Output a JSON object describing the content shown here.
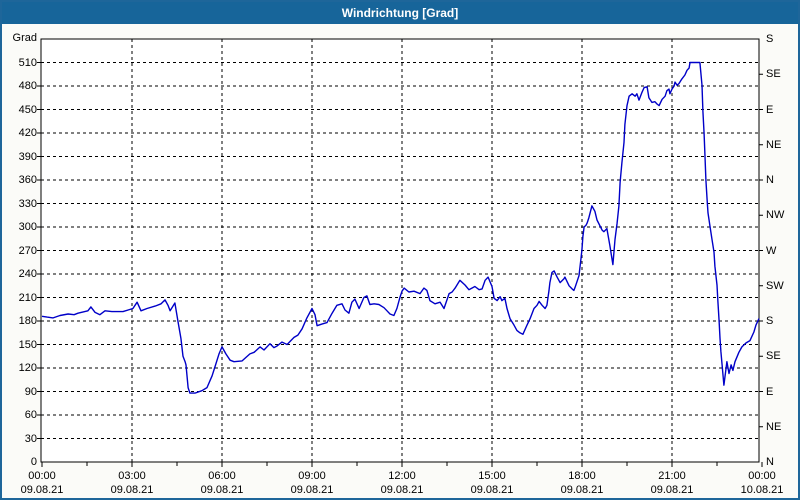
{
  "window": {
    "title": "Windrichtung [Grad]"
  },
  "colors": {
    "titlebar_bg": "#17659a",
    "titlebar_text": "#ffffff",
    "window_border": "#1e669a",
    "outer_bg": "#fbfbf8",
    "plot_bg": "#ffffff",
    "grid": "#000000",
    "line": "#0000c8"
  },
  "chart_data": {
    "type": "line",
    "title": "Windrichtung [Grad]",
    "grid": "dashed",
    "legend_position": "none",
    "y_axis_left": {
      "unit_label": "Grad",
      "range": [
        0,
        540
      ],
      "tick_step": 30,
      "ticks": [
        510,
        480,
        450,
        420,
        390,
        360,
        330,
        300,
        270,
        240,
        210,
        180,
        150,
        120,
        90,
        60,
        30,
        0
      ]
    },
    "y_axis_right": {
      "tick_step_degrees": 45,
      "ticks": [
        {
          "deg": 540,
          "label": "S"
        },
        {
          "deg": 495,
          "label": "SE"
        },
        {
          "deg": 450,
          "label": "E"
        },
        {
          "deg": 405,
          "label": "NE"
        },
        {
          "deg": 360,
          "label": "N"
        },
        {
          "deg": 315,
          "label": "NW"
        },
        {
          "deg": 270,
          "label": "W"
        },
        {
          "deg": 225,
          "label": "SW"
        },
        {
          "deg": 180,
          "label": "S"
        },
        {
          "deg": 135,
          "label": "SE"
        },
        {
          "deg": 90,
          "label": "E"
        },
        {
          "deg": 45,
          "label": "NE"
        },
        {
          "deg": 0,
          "label": "N"
        }
      ]
    },
    "x_axis": {
      "range_hours": [
        0,
        24
      ],
      "major_tick_hours": 3,
      "minor_tick_hours": 1.5,
      "ticks": [
        {
          "time": "00:00",
          "date": "09.08.21"
        },
        {
          "time": "03:00",
          "date": "09.08.21"
        },
        {
          "time": "06:00",
          "date": "09.08.21"
        },
        {
          "time": "09:00",
          "date": "09.08.21"
        },
        {
          "time": "12:00",
          "date": "09.08.21"
        },
        {
          "time": "15:00",
          "date": "09.08.21"
        },
        {
          "time": "18:00",
          "date": "09.08.21"
        },
        {
          "time": "21:00",
          "date": "09.08.21"
        },
        {
          "time": "00:00",
          "date": "10.08.21"
        }
      ]
    },
    "series": [
      {
        "name": "Windrichtung",
        "color": "#0000c8",
        "points": [
          [
            0,
            186
          ],
          [
            0.17,
            185
          ],
          [
            0.37,
            184
          ],
          [
            0.6,
            187
          ],
          [
            0.87,
            189
          ],
          [
            1.07,
            188
          ],
          [
            1.2,
            190
          ],
          [
            1.53,
            193
          ],
          [
            1.63,
            198
          ],
          [
            1.77,
            191
          ],
          [
            1.93,
            188
          ],
          [
            2.1,
            193
          ],
          [
            2.33,
            192
          ],
          [
            2.7,
            192
          ],
          [
            2.87,
            194
          ],
          [
            3.03,
            196
          ],
          [
            3.17,
            204
          ],
          [
            3.3,
            193
          ],
          [
            3.5,
            196
          ],
          [
            3.77,
            199
          ],
          [
            3.97,
            202
          ],
          [
            4.1,
            207
          ],
          [
            4.2,
            200
          ],
          [
            4.27,
            193
          ],
          [
            4.43,
            203
          ],
          [
            4.53,
            180
          ],
          [
            4.63,
            158
          ],
          [
            4.7,
            135
          ],
          [
            4.77,
            128
          ],
          [
            4.8,
            124
          ],
          [
            4.87,
            95
          ],
          [
            4.93,
            88
          ],
          [
            5.1,
            88
          ],
          [
            5.33,
            91
          ],
          [
            5.5,
            95
          ],
          [
            5.67,
            110
          ],
          [
            5.77,
            122
          ],
          [
            5.9,
            138
          ],
          [
            6.0,
            147
          ],
          [
            6.13,
            138
          ],
          [
            6.27,
            130
          ],
          [
            6.4,
            128
          ],
          [
            6.67,
            129
          ],
          [
            6.93,
            138
          ],
          [
            7.07,
            140
          ],
          [
            7.27,
            147
          ],
          [
            7.4,
            143
          ],
          [
            7.6,
            151
          ],
          [
            7.73,
            146
          ],
          [
            7.83,
            148
          ],
          [
            8.0,
            153
          ],
          [
            8.17,
            150
          ],
          [
            8.4,
            159
          ],
          [
            8.53,
            162
          ],
          [
            8.67,
            170
          ],
          [
            8.83,
            184
          ],
          [
            9.0,
            196
          ],
          [
            9.1,
            188
          ],
          [
            9.17,
            174
          ],
          [
            9.33,
            176
          ],
          [
            9.5,
            178
          ],
          [
            9.67,
            190
          ],
          [
            9.83,
            200
          ],
          [
            10.0,
            202
          ],
          [
            10.1,
            194
          ],
          [
            10.23,
            190
          ],
          [
            10.33,
            204
          ],
          [
            10.43,
            208
          ],
          [
            10.57,
            196
          ],
          [
            10.73,
            210
          ],
          [
            10.83,
            212
          ],
          [
            10.93,
            201
          ],
          [
            11.07,
            202
          ],
          [
            11.23,
            201
          ],
          [
            11.4,
            197
          ],
          [
            11.5,
            193
          ],
          [
            11.6,
            189
          ],
          [
            11.73,
            187
          ],
          [
            11.83,
            196
          ],
          [
            11.93,
            210
          ],
          [
            12.0,
            218
          ],
          [
            12.07,
            222
          ],
          [
            12.23,
            217
          ],
          [
            12.4,
            218
          ],
          [
            12.6,
            215
          ],
          [
            12.73,
            222
          ],
          [
            12.83,
            219
          ],
          [
            12.93,
            206
          ],
          [
            13.1,
            202
          ],
          [
            13.27,
            204
          ],
          [
            13.4,
            196
          ],
          [
            13.57,
            215
          ],
          [
            13.67,
            217
          ],
          [
            13.77,
            222
          ],
          [
            13.93,
            232
          ],
          [
            14.1,
            226
          ],
          [
            14.23,
            220
          ],
          [
            14.33,
            222
          ],
          [
            14.43,
            224
          ],
          [
            14.57,
            220
          ],
          [
            14.67,
            221
          ],
          [
            14.77,
            232
          ],
          [
            14.87,
            236
          ],
          [
            15.0,
            224
          ],
          [
            15.07,
            209
          ],
          [
            15.17,
            206
          ],
          [
            15.27,
            211
          ],
          [
            15.33,
            206
          ],
          [
            15.43,
            209
          ],
          [
            15.5,
            196
          ],
          [
            15.6,
            183
          ],
          [
            15.73,
            175
          ],
          [
            15.83,
            168
          ],
          [
            15.93,
            165
          ],
          [
            16.03,
            163
          ],
          [
            16.17,
            175
          ],
          [
            16.27,
            183
          ],
          [
            16.4,
            196
          ],
          [
            16.5,
            200
          ],
          [
            16.57,
            205
          ],
          [
            16.67,
            200
          ],
          [
            16.77,
            196
          ],
          [
            16.83,
            200
          ],
          [
            16.9,
            219
          ],
          [
            16.93,
            229
          ],
          [
            17.0,
            242
          ],
          [
            17.07,
            244
          ],
          [
            17.17,
            236
          ],
          [
            17.27,
            229
          ],
          [
            17.4,
            234
          ],
          [
            17.43,
            236
          ],
          [
            17.57,
            225
          ],
          [
            17.67,
            221
          ],
          [
            17.73,
            219
          ],
          [
            17.77,
            223
          ],
          [
            17.9,
            238
          ],
          [
            17.93,
            248
          ],
          [
            17.97,
            261
          ],
          [
            18.0,
            272
          ],
          [
            18.03,
            288
          ],
          [
            18.07,
            300
          ],
          [
            18.13,
            302
          ],
          [
            18.17,
            305
          ],
          [
            18.23,
            312
          ],
          [
            18.33,
            327
          ],
          [
            18.43,
            320
          ],
          [
            18.5,
            309
          ],
          [
            18.67,
            296
          ],
          [
            18.73,
            294
          ],
          [
            18.83,
            298
          ],
          [
            18.93,
            276
          ],
          [
            19.03,
            252
          ],
          [
            19.1,
            284
          ],
          [
            19.17,
            305
          ],
          [
            19.23,
            327
          ],
          [
            19.27,
            357
          ],
          [
            19.33,
            382
          ],
          [
            19.4,
            408
          ],
          [
            19.43,
            431
          ],
          [
            19.5,
            455
          ],
          [
            19.57,
            467
          ],
          [
            19.67,
            470
          ],
          [
            19.77,
            467
          ],
          [
            19.83,
            470
          ],
          [
            19.9,
            462
          ],
          [
            20.0,
            472
          ],
          [
            20.07,
            478
          ],
          [
            20.17,
            479
          ],
          [
            20.23,
            465
          ],
          [
            20.33,
            459
          ],
          [
            20.43,
            460
          ],
          [
            20.5,
            457
          ],
          [
            20.57,
            455
          ],
          [
            20.67,
            463
          ],
          [
            20.77,
            467
          ],
          [
            20.83,
            474
          ],
          [
            20.9,
            476
          ],
          [
            20.93,
            470
          ],
          [
            21.0,
            476
          ],
          [
            21.07,
            480
          ],
          [
            21.1,
            485
          ],
          [
            21.17,
            481
          ],
          [
            21.23,
            483
          ],
          [
            21.33,
            489
          ],
          [
            21.43,
            494
          ],
          [
            21.5,
            500
          ],
          [
            21.57,
            503
          ],
          [
            21.6,
            510
          ],
          [
            21.93,
            510
          ],
          [
            22.0,
            481
          ],
          [
            22.03,
            448
          ],
          [
            22.07,
            419
          ],
          [
            22.1,
            390
          ],
          [
            22.13,
            360
          ],
          [
            22.17,
            335
          ],
          [
            22.2,
            318
          ],
          [
            22.27,
            300
          ],
          [
            22.33,
            285
          ],
          [
            22.4,
            268
          ],
          [
            22.43,
            250
          ],
          [
            22.5,
            226
          ],
          [
            22.53,
            205
          ],
          [
            22.57,
            180
          ],
          [
            22.6,
            158
          ],
          [
            22.63,
            141
          ],
          [
            22.67,
            124
          ],
          [
            22.73,
            98
          ],
          [
            22.83,
            128
          ],
          [
            22.9,
            113
          ],
          [
            22.97,
            124
          ],
          [
            23.03,
            117
          ],
          [
            23.1,
            128
          ],
          [
            23.23,
            140
          ],
          [
            23.33,
            147
          ],
          [
            23.47,
            152
          ],
          [
            23.6,
            155
          ],
          [
            23.73,
            166
          ],
          [
            23.8,
            175
          ],
          [
            23.9,
            183
          ]
        ]
      }
    ]
  }
}
